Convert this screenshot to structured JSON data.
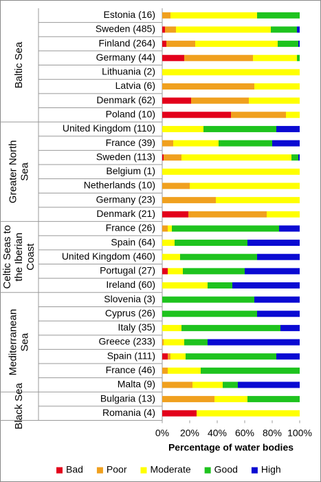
{
  "chart_data": {
    "type": "stacked-bar-horizontal",
    "groups": [
      {
        "name": "Baltic Sea",
        "categories": [
          "Estonia (16)",
          "Sweden (485)",
          "Finland (264)",
          "Germany (44)",
          "Lithuania (2)",
          "Latvia (6)",
          "Denmark (62)",
          "Poland (10)"
        ]
      },
      {
        "name": "Greater North Sea",
        "categories": [
          "United Kingdom (110)",
          "France (39)",
          "Sweden (113)",
          "Belgium (1)",
          "Netherlands (10)",
          "Germany (23)",
          "Denmark (21)"
        ]
      },
      {
        "name": "Celtic Seas to the Iberian Coast",
        "categories": [
          "France (26)",
          "Spain (64)",
          "United Kingdom (460)",
          "Portugal (27)",
          "Ireland (60)"
        ]
      },
      {
        "name": "Mediterranean Sea",
        "categories": [
          "Slovenia (3)",
          "Cyprus (26)",
          "Italy (35)",
          "Greece (233)",
          "Spain (111)",
          "France (46)",
          "Malta (9)"
        ]
      },
      {
        "name": "Black Sea",
        "categories": [
          "Bulgaria (13)",
          "Romania (4)"
        ]
      }
    ],
    "series": [
      {
        "name": "Bad",
        "color": "#e3001b",
        "values": [
          0,
          2,
          3,
          16,
          0,
          0,
          21,
          50,
          0,
          0,
          1,
          0,
          0,
          0,
          19,
          0,
          0,
          0,
          4,
          0,
          0,
          0,
          0,
          0,
          4,
          0,
          0,
          0,
          25
        ]
      },
      {
        "name": "Poor",
        "color": "#f0a01e",
        "values": [
          6,
          8,
          21,
          50,
          0,
          67,
          42,
          40,
          0,
          8,
          13,
          0,
          20,
          39,
          57,
          4,
          0,
          0,
          0,
          0,
          0,
          0,
          0,
          1,
          2,
          4,
          22,
          38,
          0
        ]
      },
      {
        "name": "Moderate",
        "color": "#ffff00",
        "values": [
          63,
          69,
          60,
          32,
          100,
          33,
          37,
          10,
          30,
          33,
          80,
          100,
          80,
          61,
          24,
          3,
          9,
          13,
          11,
          33,
          0,
          0,
          14,
          15,
          11,
          24,
          22,
          24,
          75
        ]
      },
      {
        "name": "Good",
        "color": "#1ec31e",
        "values": [
          31,
          19,
          15,
          2,
          0,
          0,
          0,
          0,
          53,
          39,
          5,
          0,
          0,
          0,
          0,
          78,
          53,
          56,
          45,
          18,
          67,
          69,
          72,
          17,
          66,
          72,
          11,
          38,
          0
        ]
      },
      {
        "name": "High",
        "color": "#0a0ad2",
        "values": [
          0,
          2,
          1,
          0,
          0,
          0,
          0,
          0,
          17,
          20,
          1,
          0,
          0,
          0,
          0,
          15,
          38,
          31,
          40,
          49,
          33,
          31,
          14,
          67,
          17,
          0,
          45,
          0,
          0
        ]
      }
    ],
    "xlim": [
      0,
      100
    ],
    "xticks": [
      {
        "value": 0,
        "label": "0%"
      },
      {
        "value": 20,
        "label": "20%"
      },
      {
        "value": 40,
        "label": "40%"
      },
      {
        "value": 60,
        "label": "60%"
      },
      {
        "value": 80,
        "label": "80%"
      },
      {
        "value": 100,
        "label": "100%"
      }
    ],
    "xlabel": "Percentage of water bodies",
    "legend": "bottom"
  }
}
